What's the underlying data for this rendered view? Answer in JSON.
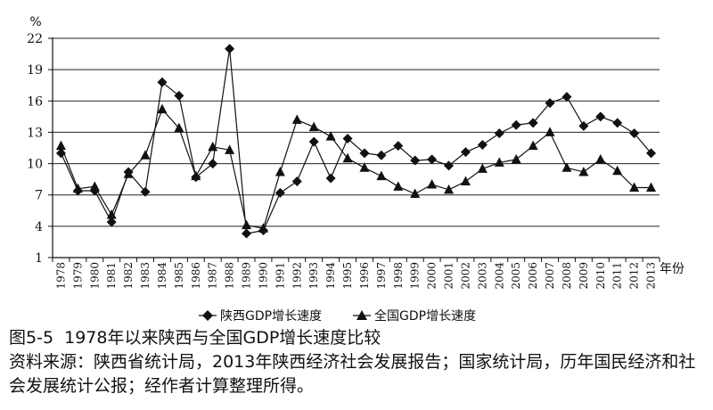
{
  "chart_data": {
    "type": "line",
    "y_unit": "%",
    "x_unit": "年份",
    "yticks": [
      1,
      4,
      7,
      10,
      13,
      16,
      19,
      22
    ],
    "ylim": [
      1,
      22
    ],
    "grid": "horizontal",
    "legend_position": "bottom",
    "categories": [
      "1978",
      "1979",
      "1980",
      "1981",
      "1982",
      "1983",
      "1984",
      "1985",
      "1986",
      "1987",
      "1988",
      "1989",
      "1990",
      "1991",
      "1992",
      "1993",
      "1994",
      "1995",
      "1996",
      "1997",
      "1998",
      "1999",
      "2000",
      "2001",
      "2002",
      "2003",
      "2004",
      "2005",
      "2006",
      "2007",
      "2008",
      "2009",
      "2010",
      "2011",
      "2012",
      "2013"
    ],
    "series": [
      {
        "name": "陕西GDP增长速度",
        "marker": "diamond",
        "values": [
          11.0,
          7.4,
          7.4,
          4.4,
          9.2,
          7.3,
          17.8,
          16.5,
          8.7,
          10.0,
          21.0,
          3.3,
          3.6,
          7.2,
          8.3,
          12.1,
          8.6,
          12.4,
          11.0,
          10.8,
          11.7,
          10.3,
          10.4,
          9.8,
          11.1,
          11.8,
          12.9,
          13.7,
          13.9,
          15.8,
          16.4,
          13.6,
          14.5,
          13.9,
          12.9,
          11.0
        ]
      },
      {
        "name": "全国GDP增长速度",
        "marker": "triangle",
        "values": [
          11.7,
          7.6,
          7.8,
          5.1,
          9.0,
          10.8,
          15.2,
          13.4,
          8.8,
          11.6,
          11.3,
          4.1,
          3.8,
          9.2,
          14.2,
          13.5,
          12.6,
          10.5,
          9.6,
          8.8,
          7.8,
          7.1,
          8.0,
          7.5,
          8.3,
          9.5,
          10.1,
          10.4,
          11.7,
          13.0,
          9.6,
          9.2,
          10.4,
          9.3,
          7.7,
          7.7
        ]
      }
    ]
  },
  "caption": {
    "title": "图5-5  1978年以来陕西与全国GDP增长速度比较",
    "source": "资料来源：陕西省统计局，2013年陕西经济社会发展报告；国家统计局，历年国民经济和社会发展统计公报；经作者计算整理所得。"
  }
}
